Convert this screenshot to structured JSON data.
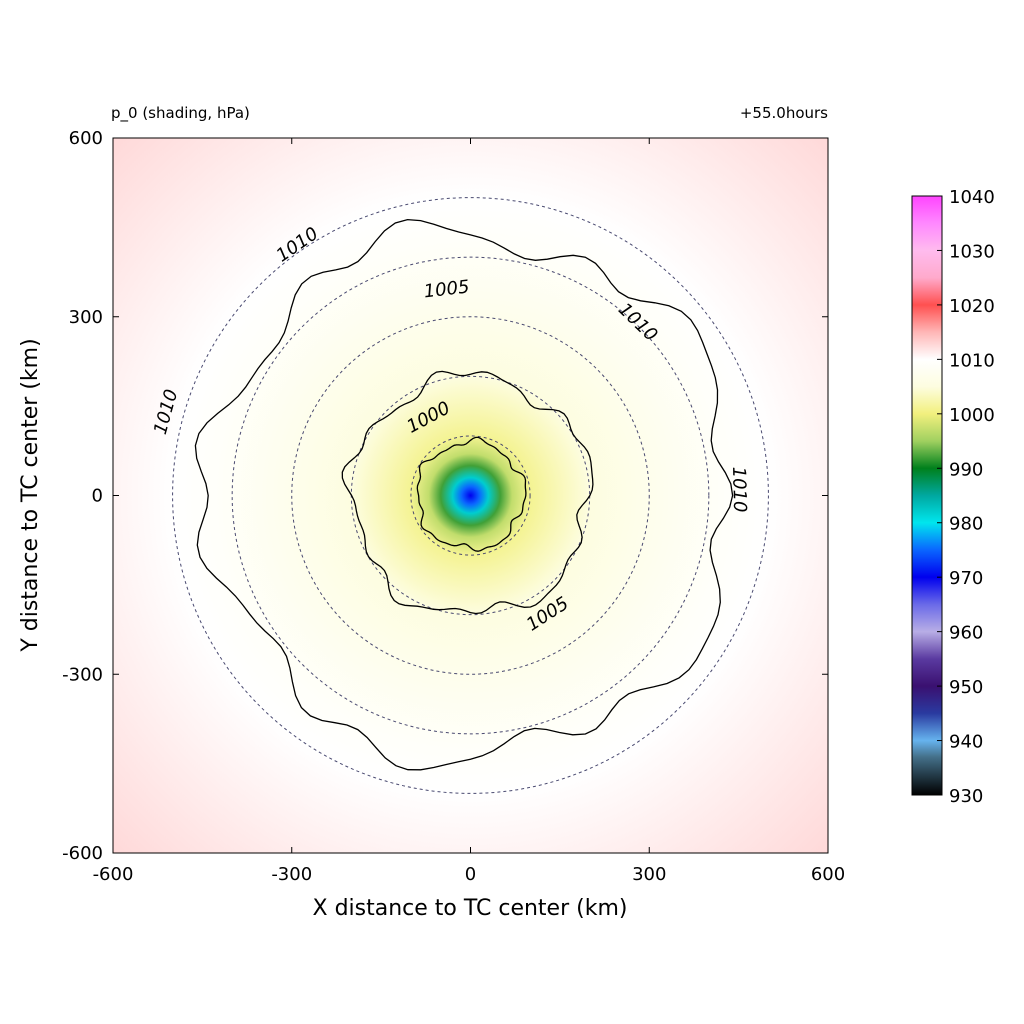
{
  "chart_data": {
    "type": "heatmap",
    "title_left": "p_0 (shading, hPa)",
    "title_right": "+55.0hours",
    "xlabel": "X distance to TC center (km)",
    "ylabel": "Y distance to TC center (km)",
    "xlim": [
      -600,
      600
    ],
    "ylim": [
      -600,
      600
    ],
    "xticks": [
      "-600",
      "-300",
      "0",
      "300",
      "600"
    ],
    "yticks": [
      "-600",
      "-300",
      "0",
      "300",
      "600"
    ],
    "colorbar": {
      "min": 930,
      "max": 1040,
      "ticks": [
        "930",
        "940",
        "950",
        "960",
        "970",
        "980",
        "990",
        "1000",
        "1010",
        "1020",
        "1030",
        "1040"
      ],
      "stops": [
        {
          "value": 930,
          "color": "#000000"
        },
        {
          "value": 937,
          "color": "#44708a"
        },
        {
          "value": 940,
          "color": "#66b3ee"
        },
        {
          "value": 945,
          "color": "#2a3aa0"
        },
        {
          "value": 950,
          "color": "#3a1070"
        },
        {
          "value": 955,
          "color": "#5a3aa0"
        },
        {
          "value": 960,
          "color": "#b8aee6"
        },
        {
          "value": 965,
          "color": "#6a6ae8"
        },
        {
          "value": 970,
          "color": "#0000ee"
        },
        {
          "value": 975,
          "color": "#0a66ff"
        },
        {
          "value": 980,
          "color": "#00e6ee"
        },
        {
          "value": 985,
          "color": "#00a8a0"
        },
        {
          "value": 990,
          "color": "#00801c"
        },
        {
          "value": 995,
          "color": "#a0d060"
        },
        {
          "value": 1000,
          "color": "#f2f07e"
        },
        {
          "value": 1005,
          "color": "#fdfde0"
        },
        {
          "value": 1010,
          "color": "#ffffff"
        },
        {
          "value": 1015,
          "color": "#ffb6b6"
        },
        {
          "value": 1020,
          "color": "#ff5050"
        },
        {
          "value": 1025,
          "color": "#ffaacc"
        },
        {
          "value": 1030,
          "color": "#ffbbee"
        },
        {
          "value": 1035,
          "color": "#ff88ff"
        },
        {
          "value": 1040,
          "color": "#ff44ff"
        }
      ]
    },
    "pressure_field": {
      "center_value": 970,
      "radial_profile": [
        {
          "r_km": 0,
          "value": 970
        },
        {
          "r_km": 15,
          "value": 975
        },
        {
          "r_km": 30,
          "value": 982
        },
        {
          "r_km": 50,
          "value": 992
        },
        {
          "r_km": 70,
          "value": 997
        },
        {
          "r_km": 100,
          "value": 1001
        },
        {
          "r_km": 150,
          "value": 1003
        },
        {
          "r_km": 200,
          "value": 1005
        },
        {
          "r_km": 300,
          "value": 1007
        },
        {
          "r_km": 420,
          "value": 1009
        },
        {
          "r_km": 500,
          "value": 1010
        },
        {
          "r_km": 700,
          "value": 1011.5
        },
        {
          "r_km": 900,
          "value": 1013
        }
      ]
    },
    "range_rings_km": [
      100,
      200,
      300,
      400,
      500
    ],
    "contours": [
      {
        "level": 1000,
        "label": "1000",
        "approx_radius_km": 90,
        "label_position_km": [
          -70,
          130
        ]
      },
      {
        "level": 1005,
        "label": "1005",
        "approx_radius_km": 200,
        "label_position_km": [
          -40,
          345
        ]
      },
      {
        "level": 1005,
        "label": "1005",
        "approx_radius_km": 200,
        "label_position_km": [
          130,
          -200
        ]
      },
      {
        "level": 1010,
        "label": "1010",
        "approx_radius_km": 440,
        "label_position_km": [
          -290,
          420
        ]
      },
      {
        "level": 1010,
        "label": "1010",
        "approx_radius_km": 440,
        "label_position_km": [
          -510,
          140
        ]
      },
      {
        "level": 1010,
        "label": "1010",
        "approx_radius_km": 440,
        "label_position_km": [
          280,
          290
        ]
      },
      {
        "level": 1010,
        "label": "1010",
        "approx_radius_km": 440,
        "label_position_km": [
          450,
          10
        ]
      }
    ]
  }
}
